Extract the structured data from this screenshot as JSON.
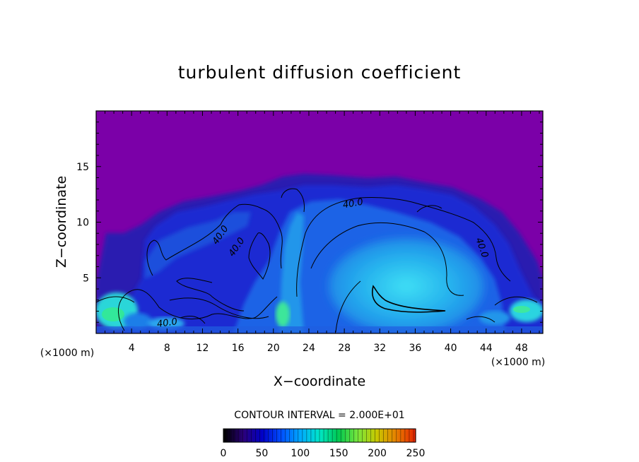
{
  "chart_data": {
    "type": "heatmap",
    "title": "turbulent diffusion coefficient",
    "xlabel": "X−coordinate",
    "ylabel": "Z−coordinate",
    "x_unit_left": "(×1000 m)",
    "x_unit_right": "(×1000 m)",
    "xlim": [
      0,
      50.4
    ],
    "ylim": [
      0,
      20
    ],
    "x_ticks": [
      "4",
      "8",
      "12",
      "16",
      "20",
      "24",
      "28",
      "32",
      "36",
      "40",
      "44",
      "48"
    ],
    "y_ticks": [
      "5",
      "10",
      "15"
    ],
    "contour_interval_label": "CONTOUR INTERVAL = 2.000E+01",
    "contour_labels": [
      "40.0",
      "40.0",
      "40.0",
      "40.0",
      "40.0"
    ],
    "colorbar": {
      "ticks": [
        "0",
        "50",
        "100",
        "150",
        "200",
        "250"
      ],
      "range": [
        0,
        250
      ],
      "colormap": [
        "#000000",
        "#2a007a",
        "#0000c8",
        "#0050ff",
        "#00aaff",
        "#00e6c8",
        "#00c850",
        "#78e63c",
        "#c8c800",
        "#e68200",
        "#e62800"
      ]
    },
    "colors": {
      "background_field": "#7b00a8",
      "cloud_dark": "#1a22c8",
      "cloud_mid": "#1f6ee8",
      "cloud_light": "#22c8f0",
      "contour": "#000000"
    }
  }
}
